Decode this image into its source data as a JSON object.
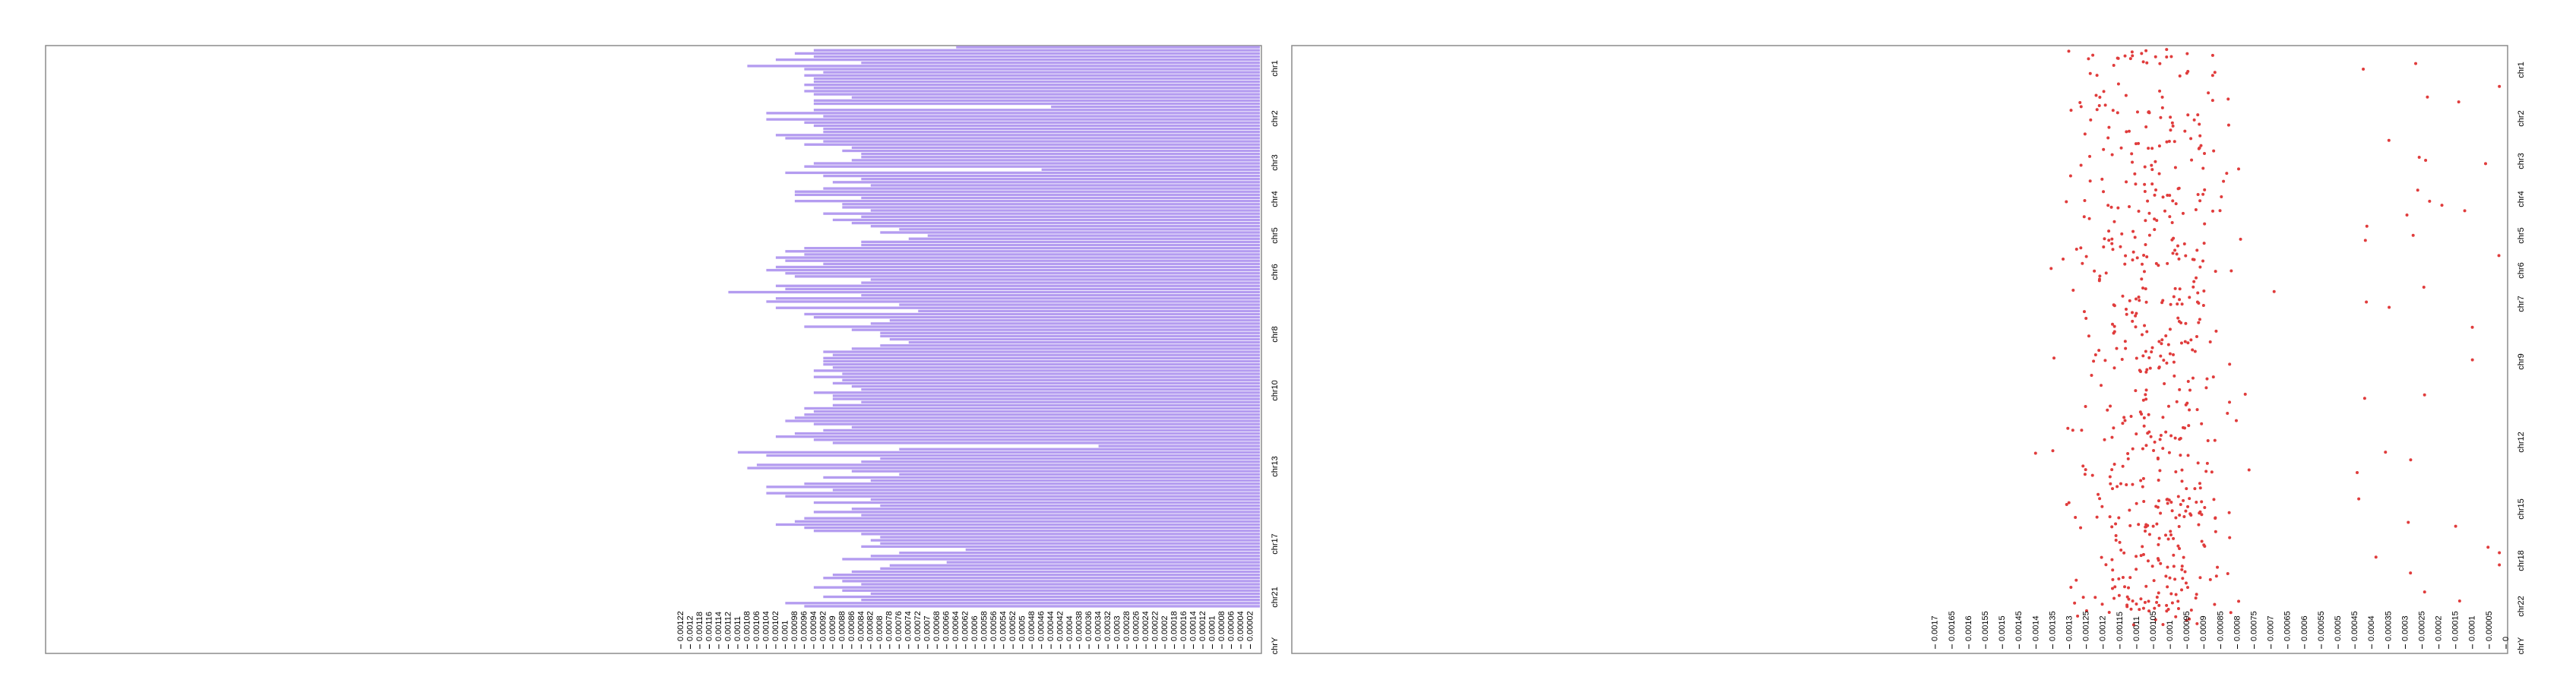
{
  "chart_data": [
    {
      "type": "bar",
      "orientation": "horizontal",
      "bar_color": "#b49cf0",
      "chromosome_labels": [
        "chr1",
        "chr2",
        "chr3",
        "chr4",
        "chr5",
        "chr6",
        "chr8",
        "chr10",
        "chr13",
        "chr17",
        "chr21",
        "chrY"
      ],
      "tick_labels": [
        "0.00122",
        "0.0012",
        "0.00118",
        "0.00116",
        "0.00114",
        "0.00112",
        "0.0011",
        "0.00108",
        "0.00106",
        "0.00104",
        "0.00102",
        "0.001",
        "0.00098",
        "0.00096",
        "0.00094",
        "0.00092",
        "0.0009",
        "0.00088",
        "0.00086",
        "0.00084",
        "0.00082",
        "0.0008",
        "0.00078",
        "0.00076",
        "0.00074",
        "0.00072",
        "0.0007",
        "0.00068",
        "0.00066",
        "0.00064",
        "0.00062",
        "0.0006",
        "0.00058",
        "0.00056",
        "0.00054",
        "0.00052",
        "0.0005",
        "0.00048",
        "0.00046",
        "0.00044",
        "0.00042",
        "0.0004",
        "0.00038",
        "0.00036",
        "0.00034",
        "0.00032",
        "0.0003",
        "0.00028",
        "0.00026",
        "0.00024",
        "0.00022",
        "0.0002",
        "0.00018",
        "0.00016",
        "0.00014",
        "0.00012",
        "0.0001",
        "0.00008",
        "0.00006",
        "0.00004",
        "0.00002"
      ],
      "xlim": [
        0.00122,
        0
      ],
      "values": [
        0.00064,
        0.00094,
        0.00098,
        0.00094,
        0.00102,
        0.00084,
        0.00108,
        0.00096,
        0.00092,
        0.00096,
        0.00094,
        0.00094,
        0.00096,
        0.00094,
        0.00096,
        0.00094,
        0.00086,
        0.00094,
        0.00094,
        0.00044,
        0.00094,
        0.00104,
        0.00092,
        0.00104,
        0.00096,
        0.00094,
        0.00092,
        0.00092,
        0.00102,
        0.001,
        0.00092,
        0.00096,
        0.00086,
        0.00088,
        0.00084,
        0.00084,
        0.00086,
        0.00094,
        0.00096,
        0.00046,
        0.001,
        0.00092,
        0.00084,
        0.0009,
        0.00082,
        0.00092,
        0.00098,
        0.00098,
        0.00084,
        0.00098,
        0.00088,
        0.00088,
        0.00082,
        0.00092,
        0.00084,
        0.0009,
        0.00086,
        0.00082,
        0.00076,
        0.0008,
        0.0007,
        0.00074,
        0.00084,
        0.00084,
        0.00096,
        0.001,
        0.00096,
        0.00102,
        0.001,
        0.00092,
        0.00102,
        0.00104,
        0.001,
        0.00098,
        0.00082,
        0.00084,
        0.00102,
        0.001,
        0.00112,
        0.00084,
        0.00102,
        0.00104,
        0.00076,
        0.00102,
        0.00072,
        0.00096,
        0.00094,
        0.00078,
        0.00082,
        0.00096,
        0.00086,
        0.0008,
        0.0008,
        0.00078,
        0.00074,
        0.0008,
        0.00086,
        0.00092,
        0.0009,
        0.00092,
        0.00092,
        0.00092,
        0.0009,
        0.00094,
        0.00088,
        0.00094,
        0.00088,
        0.0009,
        0.00086,
        0.00084,
        0.00094,
        0.0009,
        0.0009,
        0.00084,
        0.0009,
        0.00096,
        0.00094,
        0.00096,
        0.00098,
        0.001,
        0.00094,
        0.00086,
        0.00092,
        0.00098,
        0.00102,
        0.00094,
        0.0009,
        0.00034,
        0.00076,
        0.0011,
        0.00104,
        0.0008,
        0.00084,
        0.00106,
        0.00108,
        0.00086,
        0.00076,
        0.00092,
        0.00082,
        0.00096,
        0.00104,
        0.0009,
        0.00104,
        0.001,
        0.00082,
        0.00094,
        0.0008,
        0.00086,
        0.00094,
        0.00084,
        0.00096,
        0.00098,
        0.00102,
        0.00096,
        0.00094,
        0.00084,
        0.0008,
        0.00082,
        0.0008,
        0.00084,
        0.00062,
        0.00076,
        0.00082,
        0.00088,
        0.00066,
        0.00078,
        0.0008,
        0.00086,
        0.0009,
        0.00092,
        0.00088,
        0.00084,
        0.00094,
        0.00088,
        0.00082,
        0.00092,
        0.00084,
        0.001,
        0.00096
      ]
    },
    {
      "type": "scatter",
      "point_color": "#e03c3c",
      "chromosome_labels": [
        "chr1",
        "chr2",
        "chr3",
        "chr4",
        "chr5",
        "chr6",
        "chr7",
        "chr9",
        "chr12",
        "chr15",
        "chr18",
        "chr22",
        "chrY"
      ],
      "tick_labels": [
        "0.0017",
        "0.00165",
        "0.0016",
        "0.00155",
        "0.0015",
        "0.00145",
        "0.0014",
        "0.00135",
        "0.0013",
        "0.00125",
        "0.0012",
        "0.00115",
        "0.0011",
        "0.00105",
        "0.001",
        "0.00095",
        "0.0009",
        "0.00085",
        "0.0008",
        "0.00075",
        "0.0007",
        "0.00065",
        "0.0006",
        "0.00055",
        "0.0005",
        "0.00045",
        "0.0004",
        "0.00035",
        "0.0003",
        "0.00025",
        "0.0002",
        "0.00015",
        "0.0001",
        "0.00005",
        "0"
      ],
      "xlim": [
        0.00172,
        0
      ]
    }
  ]
}
